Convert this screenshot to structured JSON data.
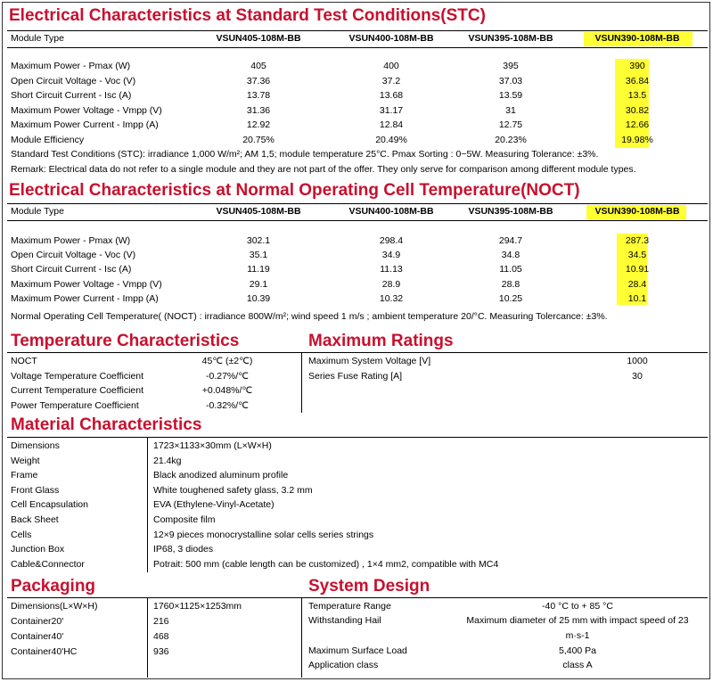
{
  "stc": {
    "title": "Electrical Characteristics at Standard Test Conditions(STC)",
    "module_type_label": "Module Type",
    "models": [
      "VSUN405-108M-BB",
      "VSUN400-108M-BB",
      "VSUN395-108M-BB",
      "VSUN390-108M-BB"
    ],
    "rows": [
      {
        "label": "Maximum Power - Pmax (W)",
        "values": [
          "405",
          "400",
          "395",
          "390"
        ]
      },
      {
        "label": "Open Circuit Voltage - Voc (V)",
        "values": [
          "37.36",
          "37.2",
          "37.03",
          "36.84"
        ]
      },
      {
        "label": "Short Circuit Current - Isc (A)",
        "values": [
          "13.78",
          "13.68",
          "13.59",
          "13.5"
        ]
      },
      {
        "label": "Maximum Power Voltage - Vmpp (V)",
        "values": [
          "31.36",
          "31.17",
          "31",
          "30.82"
        ]
      },
      {
        "label": "Maximum Power Current - Impp (A)",
        "values": [
          "12.92",
          "12.84",
          "12.75",
          "12.66"
        ]
      },
      {
        "label": "Module Efficiency",
        "values": [
          "20.75%",
          "20.49%",
          "20.23%",
          "19.98%"
        ]
      }
    ],
    "note": "Standard Test Conditions (STC): irradiance 1,000 W/m²; AM 1,5; module temperature 25°C. Pmax Sorting : 0~5W. Measuring Tolerance: ±3%.",
    "remark": "Remark: Electrical data do not refer to a single module and they are not part of the offer. They only serve for comparison among different module types."
  },
  "noct": {
    "title": "Electrical Characteristics at Normal Operating Cell Temperature(NOCT)",
    "module_type_label": "Module Type",
    "models": [
      "VSUN405-108M-BB",
      "VSUN400-108M-BB",
      "VSUN395-108M-BB",
      "VSUN390-108M-BB"
    ],
    "rows": [
      {
        "label": "Maximum Power - Pmax (W)",
        "values": [
          "302.1",
          "298.4",
          "294.7",
          "287.3"
        ]
      },
      {
        "label": "Open Circuit Voltage - Voc (V)",
        "values": [
          "35.1",
          "34.9",
          "34.8",
          "34.5"
        ]
      },
      {
        "label": "Short Circuit Current - Isc (A)",
        "values": [
          "11.19",
          "11.13",
          "11.05",
          "10.91"
        ]
      },
      {
        "label": "Maximum Power Voltage - Vmpp (V)",
        "values": [
          "29.1",
          "28.9",
          "28.8",
          "28.4"
        ]
      },
      {
        "label": "Maximum Power Current - Impp (A)",
        "values": [
          "10.39",
          "10.32",
          "10.25",
          "10.1"
        ]
      }
    ],
    "note": "Normal Operating Cell Temperature( (NOCT) : irradiance 800W/m²; wind speed 1 m/s ; ambient temperature 20/°C. Measuring Tolercance: ±3%."
  },
  "temperature": {
    "title": "Temperature Characteristics",
    "rows": [
      {
        "label": "NOCT",
        "value": "45℃  (±2℃)"
      },
      {
        "label": "Voltage Temperature Coefficient",
        "value": "-0.27%/℃"
      },
      {
        "label": "Current Temperature Coefficient",
        "value": "+0.048%/℃"
      },
      {
        "label": "Power Temperature Coefficient",
        "value": "-0.32%/℃"
      }
    ]
  },
  "ratings": {
    "title": "Maximum Ratings",
    "rows": [
      {
        "label": "Maximum System Voltage [V]",
        "value": "1000"
      },
      {
        "label": "Series Fuse Rating [A]",
        "value": "30"
      }
    ]
  },
  "material": {
    "title": "Material Characteristics",
    "rows": [
      {
        "label": "Dimensions",
        "value": "1723×1133×30mm (L×W×H)"
      },
      {
        "label": "Weight",
        "value": "21.4kg"
      },
      {
        "label": "Frame",
        "value": "Black anodized aluminum profile"
      },
      {
        "label": "Front Glass",
        "value": "White toughened safety glass, 3.2 mm"
      },
      {
        "label": "Cell Encapsulation",
        "value": "EVA (Ethylene-Vinyl-Acetate)"
      },
      {
        "label": "Back Sheet",
        "value": "Composite film"
      },
      {
        "label": "Cells",
        "value": "12×9 pieces monocrystalline solar cells series strings"
      },
      {
        "label": "Junction Box",
        "value": "IP68, 3 diodes"
      },
      {
        "label": "Cable&Connector",
        "value": "Potrait: 500 mm (cable length can be customized) , 1×4 mm2, compatible with MC4"
      }
    ]
  },
  "packaging": {
    "title": "Packaging",
    "rows": [
      {
        "label": "Dimensions(L×W×H)",
        "value": "1760×1125×1253mm"
      },
      {
        "label": "Container20'",
        "value": "216"
      },
      {
        "label": "Container40'",
        "value": "468"
      },
      {
        "label": "Container40'HC",
        "value": "936"
      }
    ]
  },
  "system": {
    "title": "System Design",
    "rows": [
      {
        "label": "Temperature Range",
        "value": "-40 °C to + 85 °C"
      },
      {
        "label": "Withstanding Hail",
        "value": "Maximum diameter of 25 mm with impact speed of 23",
        "value2": "m·s-1"
      },
      {
        "label": "Maximum Surface Load",
        "value": "5,400 Pa"
      },
      {
        "label": "Application class",
        "value": "class A"
      }
    ]
  },
  "highlight_color": "#ffff33",
  "heading_color": "#c8102e"
}
